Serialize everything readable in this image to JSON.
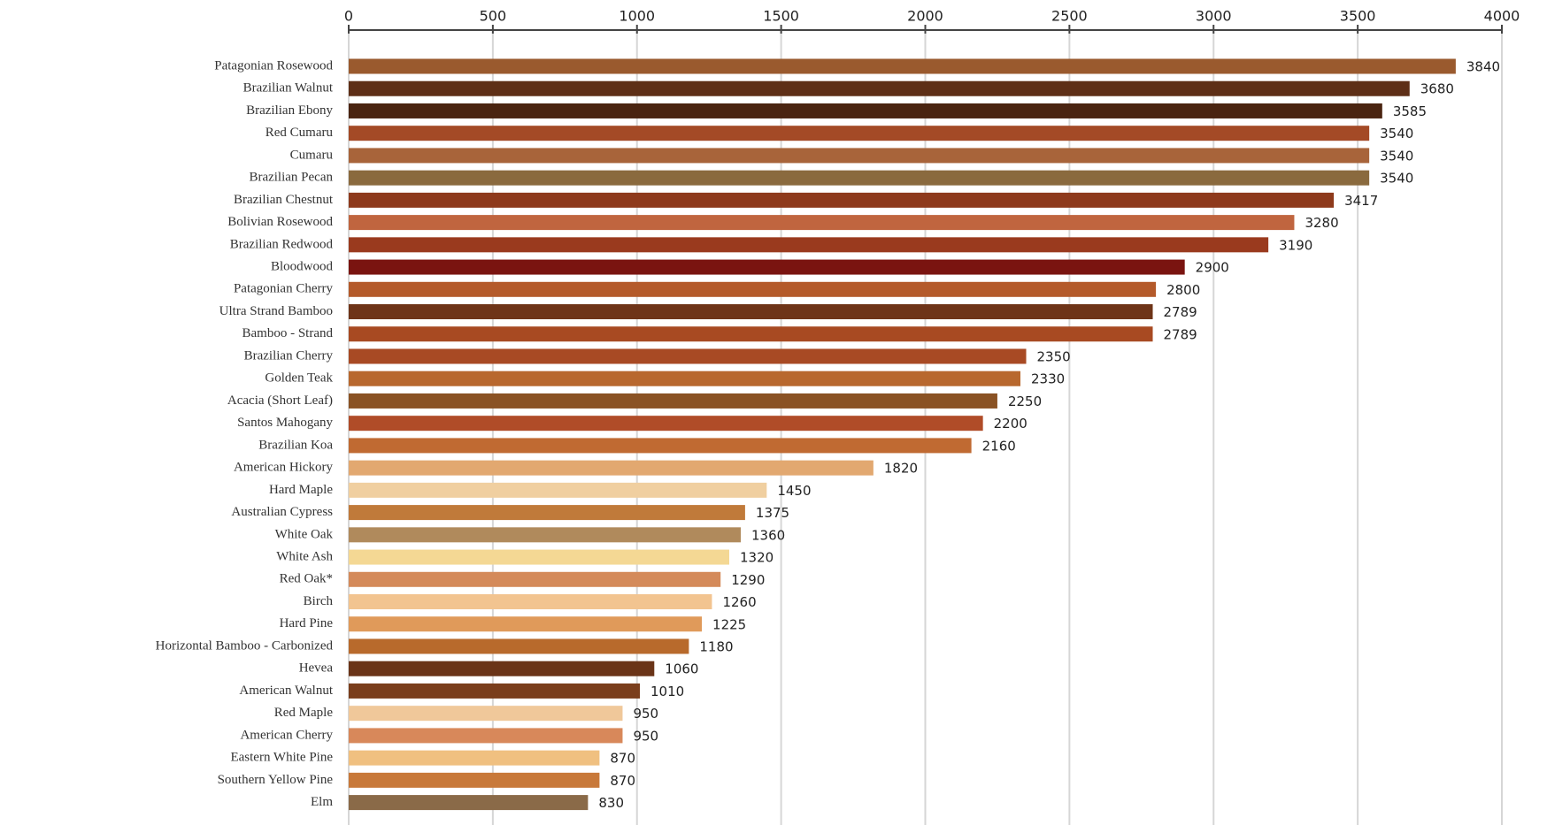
{
  "chart_data": {
    "type": "barh",
    "categories": [
      "Patagonian Rosewood",
      "Brazilian Walnut",
      "Brazilian Ebony",
      "Red Cumaru",
      "Cumaru",
      "Brazilian Pecan",
      "Brazilian Chestnut",
      "Bolivian Rosewood",
      "Brazilian Redwood",
      "Bloodwood",
      "Patagonian Cherry",
      "Ultra Strand Bamboo",
      "Bamboo - Strand",
      "Brazilian Cherry",
      "Golden Teak",
      "Acacia (Short Leaf)",
      "Santos Mahogany",
      "Brazilian Koa",
      "American Hickory",
      "Hard Maple",
      "Australian Cypress",
      "White Oak",
      "White Ash",
      "Red Oak*",
      "Birch",
      "Hard Pine",
      "Horizontal Bamboo - Carbonized",
      "Hevea",
      "American Walnut",
      "Red Maple",
      "American Cherry",
      "Eastern White Pine",
      "Southern Yellow Pine",
      "Elm"
    ],
    "values": [
      3840,
      3680,
      3585,
      3540,
      3540,
      3540,
      3417,
      3280,
      3190,
      2900,
      2800,
      2789,
      2789,
      2350,
      2330,
      2250,
      2200,
      2160,
      1820,
      1450,
      1375,
      1360,
      1320,
      1290,
      1260,
      1225,
      1180,
      1060,
      1010,
      950,
      950,
      870,
      870,
      830
    ],
    "colors": [
      "#9a5a2e",
      "#5e2f17",
      "#4a2411",
      "#a44a26",
      "#a8643a",
      "#8a6a3e",
      "#8e3a1c",
      "#c0653f",
      "#9a3a1e",
      "#7a1410",
      "#b45a2a",
      "#6e3418",
      "#a84a22",
      "#a84a24",
      "#b8682e",
      "#8a5224",
      "#b04c28",
      "#c06a32",
      "#e2a870",
      "#f0cfa0",
      "#c07a3a",
      "#b08a5c",
      "#f4d894",
      "#d48a5a",
      "#f2c490",
      "#e09a5a",
      "#b86a2c",
      "#6a3418",
      "#7a3e1c",
      "#f0c89a",
      "#d8885a",
      "#f0c080",
      "#c8793a",
      "#8a6a48"
    ],
    "xlim": [
      0,
      4000
    ],
    "xticks": [
      0,
      500,
      1000,
      1500,
      2000,
      2500,
      3000,
      3500,
      4000
    ],
    "grid": true
  }
}
